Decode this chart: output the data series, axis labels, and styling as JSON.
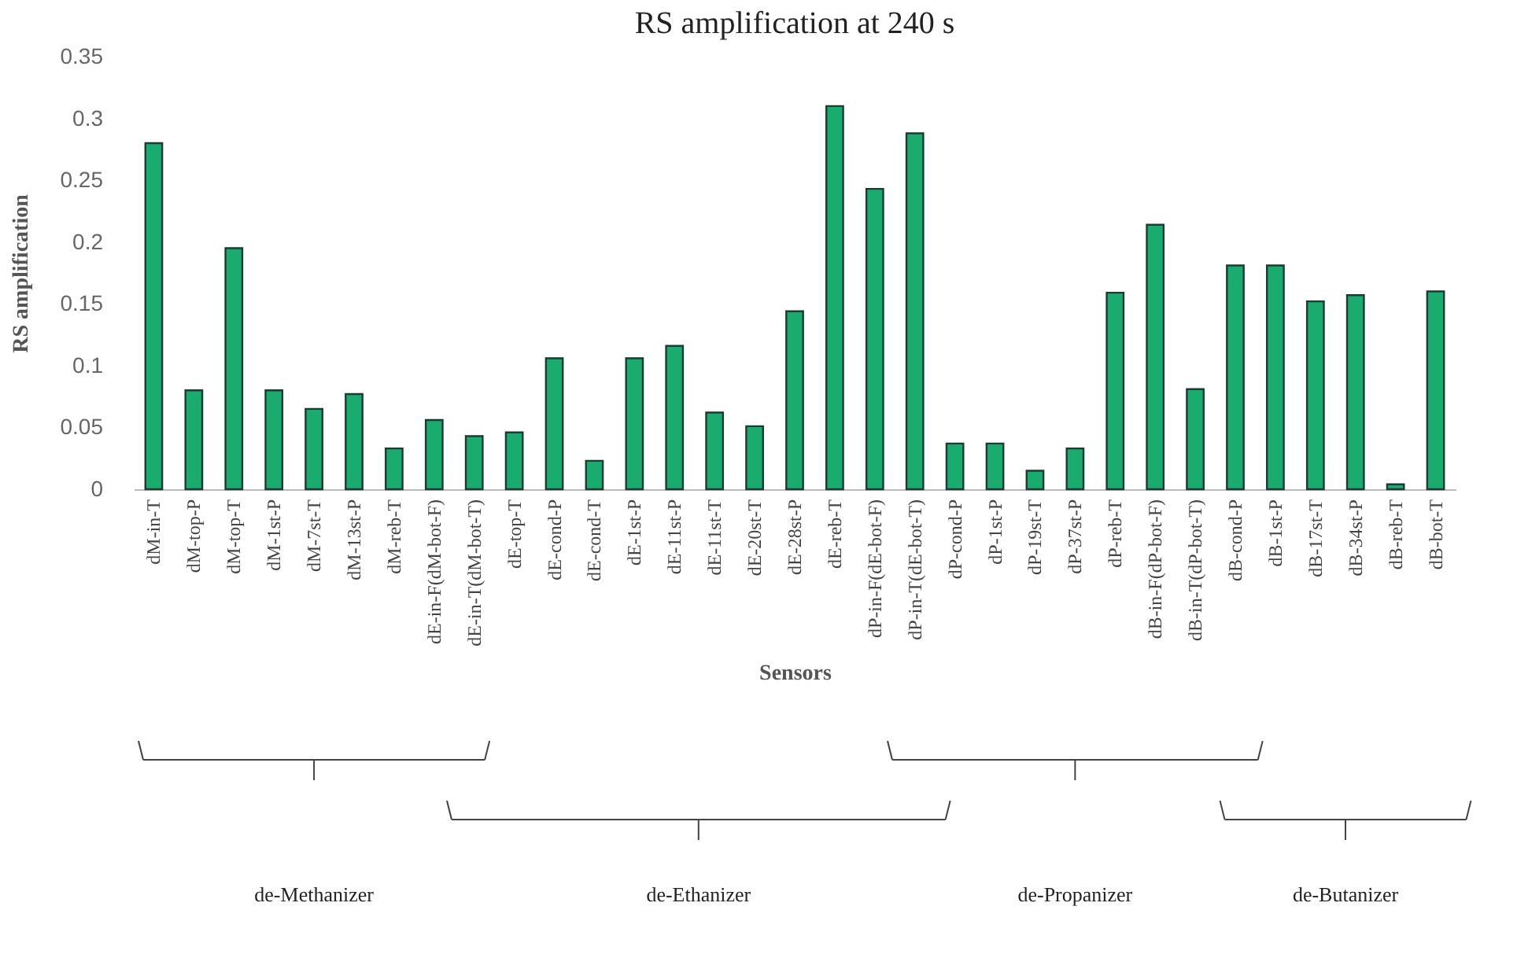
{
  "chart_data": {
    "type": "bar",
    "title": "RS amplification at 240 s",
    "xlabel": "Sensors",
    "ylabel": "RS amplification",
    "categories": [
      "dM-in-T",
      "dM-top-P",
      "dM-top-T",
      "dM-1st-P",
      "dM-7st-T",
      "dM-13st-P",
      "dM-reb-T",
      "dE-in-F(dM-bot-F)",
      "dE-in-T(dM-bot-T)",
      "dE-top-T",
      "dE-cond-P",
      "dE-cond-T",
      "dE-1st-P",
      "dE-11st-P",
      "dE-11st-T",
      "dE-20st-T",
      "dE-28st-P",
      "dE-reb-T",
      "dP-in-F(dE-bot-F)",
      "dP-in-T(dE-bot-T)",
      "dP-cond-P",
      "dP-1st-P",
      "dP-19st-T",
      "dP-37st-P",
      "dP-reb-T",
      "dB-in-F(dP-bot-F)",
      "dB-in-T(dP-bot-T)",
      "dB-cond-P",
      "dB-1st-P",
      "dB-17st-T",
      "dB-34st-P",
      "dB-reb-T",
      "dB-bot-T"
    ],
    "values": [
      0.28,
      0.08,
      0.195,
      0.08,
      0.065,
      0.077,
      0.033,
      0.056,
      0.043,
      0.046,
      0.106,
      0.023,
      0.106,
      0.116,
      0.062,
      0.051,
      0.144,
      0.31,
      0.243,
      0.288,
      0.037,
      0.037,
      0.015,
      0.033,
      0.159,
      0.214,
      0.081,
      0.181,
      0.181,
      0.152,
      0.157,
      0.004,
      0.16
    ],
    "color": "#1aab6f",
    "ylim": [
      0,
      0.35
    ],
    "yticks": [
      {
        "value": 0,
        "label": "0"
      },
      0.05,
      {
        "value": 0.1,
        "label": "0.1"
      },
      0.15,
      {
        "value": 0.2,
        "label": "0.2"
      },
      0.25,
      {
        "value": 0.3,
        "label": "0.3"
      },
      0.35
    ],
    "grid": false,
    "annotations": [
      "de-Methanizer",
      "de-Ethanizer",
      "de-Propanizer",
      "de-Butanizer"
    ]
  }
}
